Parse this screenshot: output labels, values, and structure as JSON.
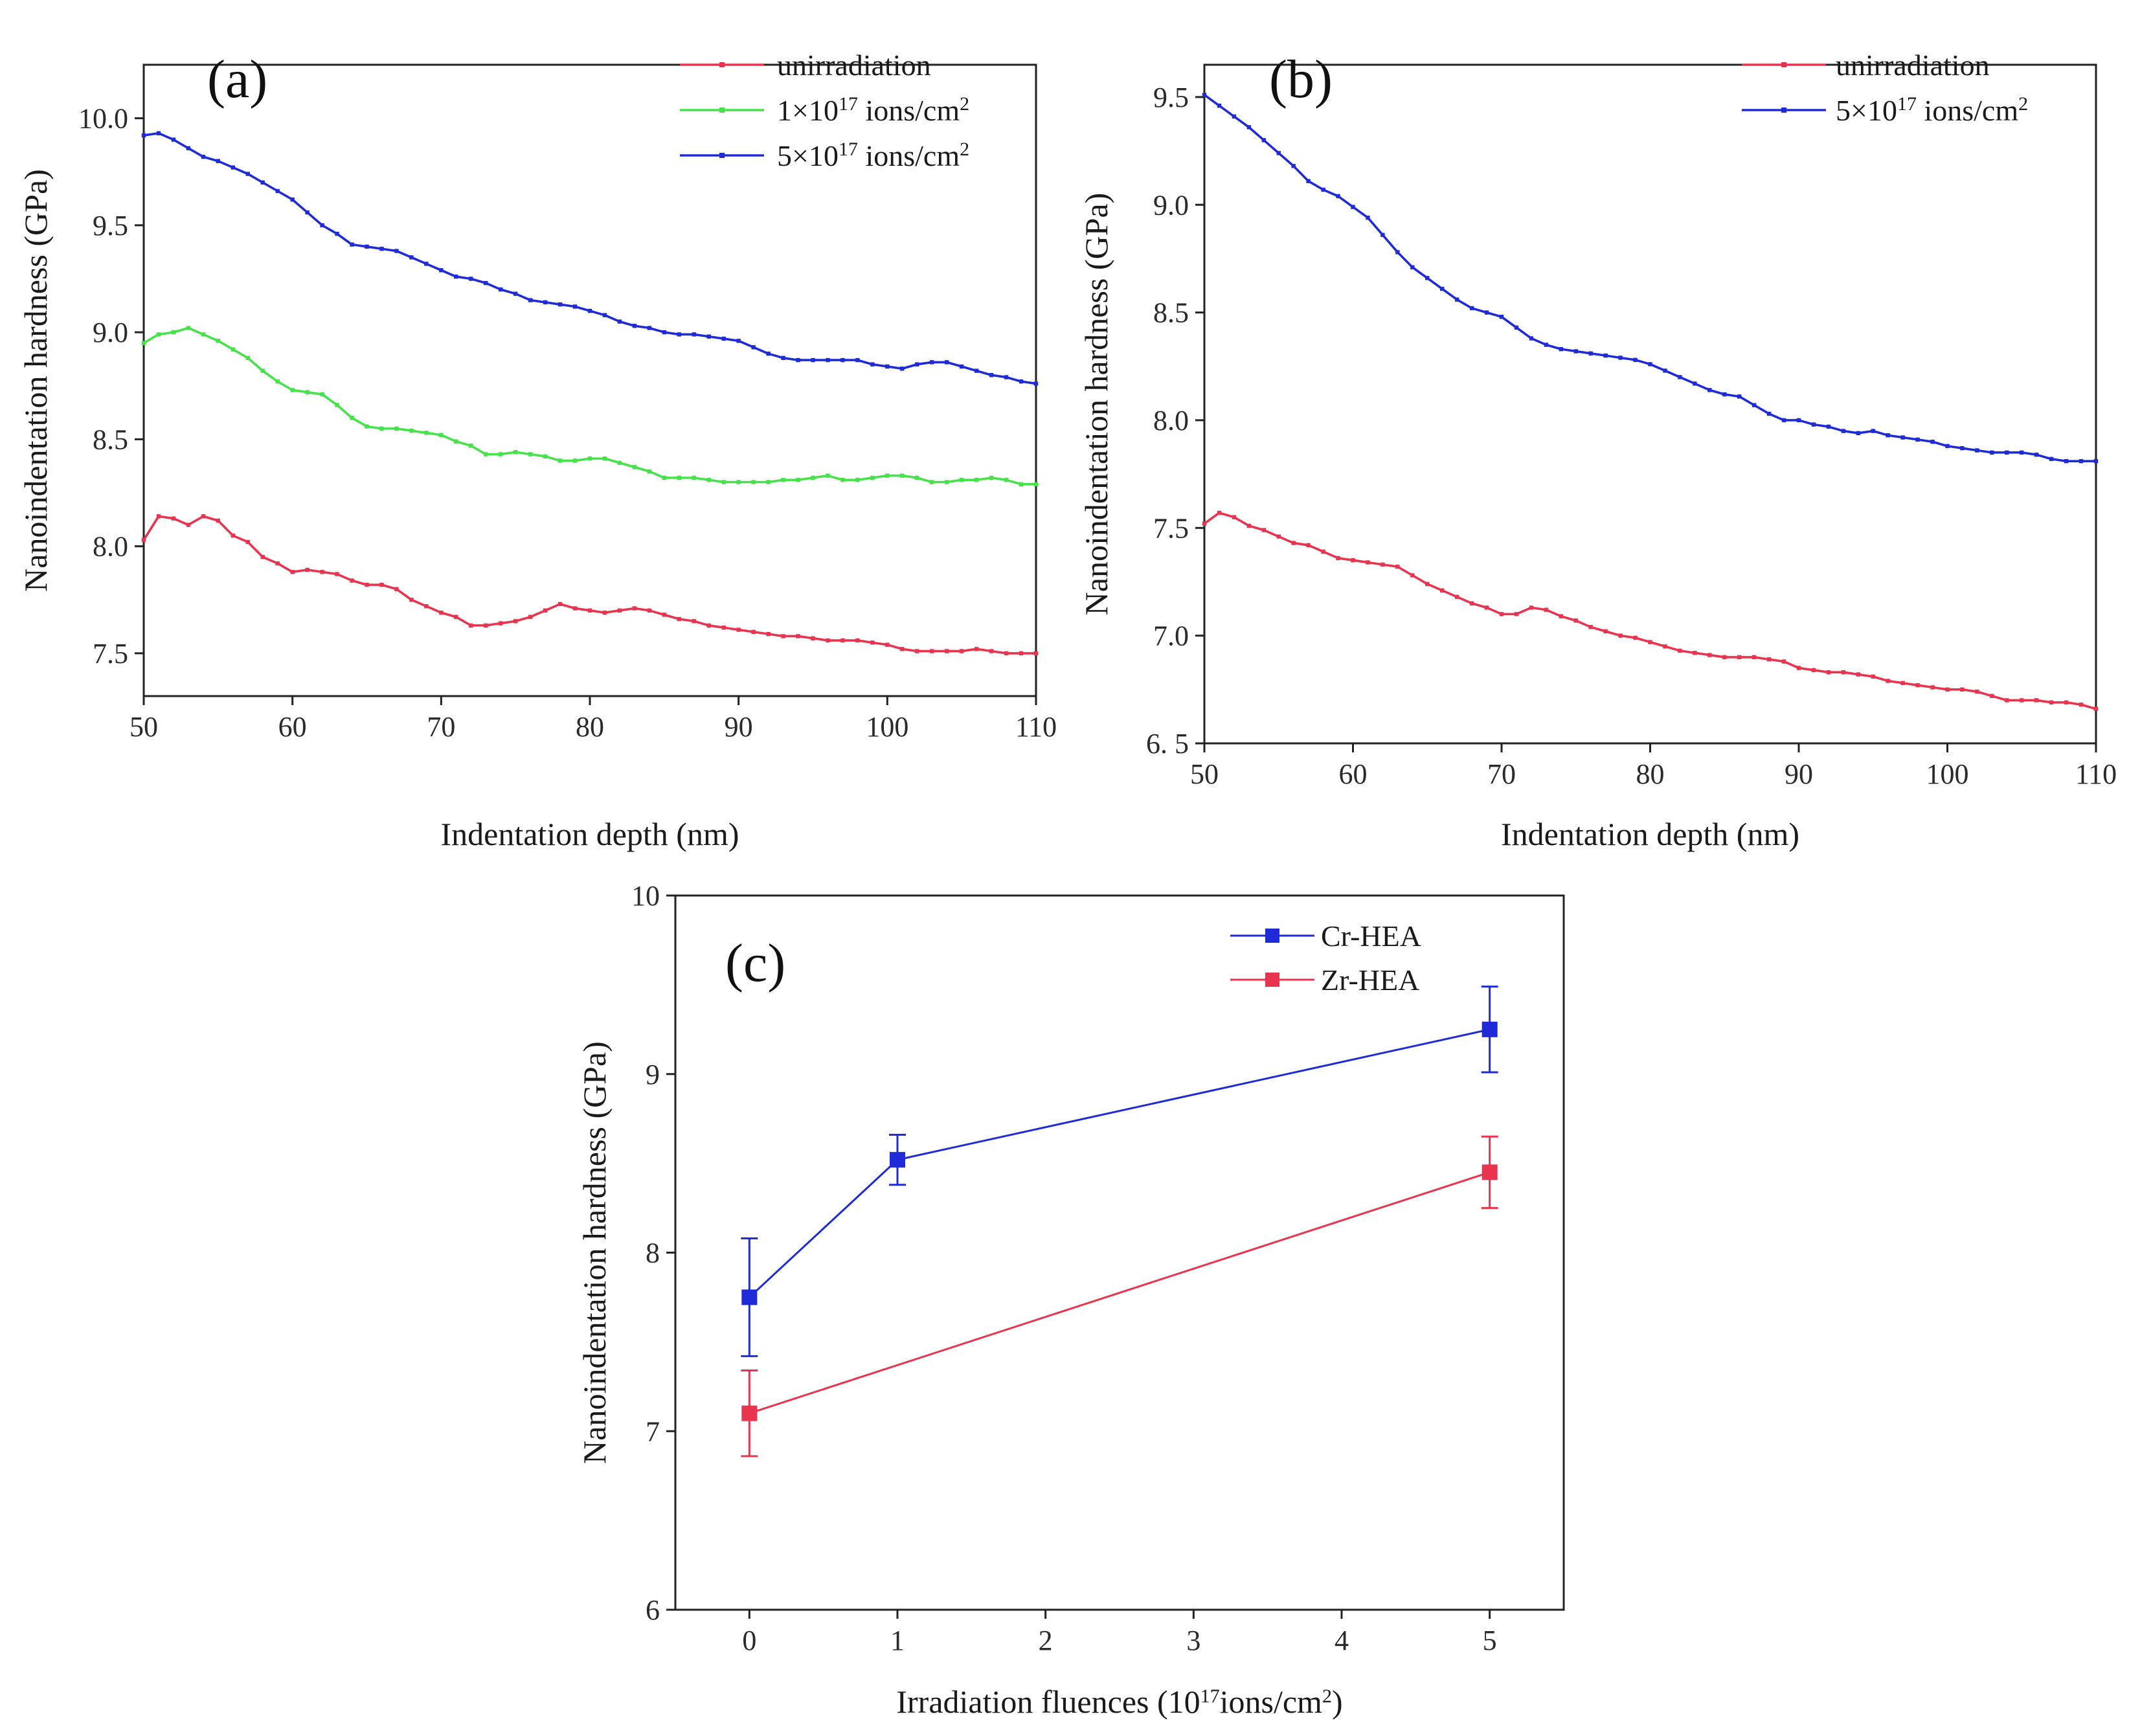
{
  "colors": {
    "red": "#e8344e",
    "green": "#45e24a",
    "blue": "#1e2bd6",
    "axis": "#222222"
  },
  "chart_data": [
    {
      "panel": "(a)",
      "type": "line",
      "xlabel": "Indentation depth (nm)",
      "ylabel": "Nanoindentation hardness (GPa)",
      "xlim": [
        50,
        110
      ],
      "ylim": [
        7.3,
        10.25
      ],
      "xticks": [
        "50",
        "60",
        "70",
        "80",
        "90",
        "100",
        "110"
      ],
      "yticks": [
        "7.5",
        "8.0",
        "8.5",
        "9.0",
        "9.5",
        "10.0"
      ],
      "legend_position": "top-right",
      "series": [
        {
          "name": "unirradiation",
          "color_key": "red",
          "x": [
            50,
            51,
            52,
            53,
            54,
            55,
            56,
            57,
            58,
            59,
            60,
            61,
            62,
            63,
            64,
            65,
            66,
            67,
            68,
            69,
            70,
            71,
            72,
            73,
            74,
            75,
            76,
            77,
            78,
            79,
            80,
            81,
            82,
            83,
            84,
            85,
            86,
            87,
            88,
            89,
            90,
            91,
            92,
            93,
            94,
            95,
            96,
            97,
            98,
            99,
            100,
            101,
            102,
            103,
            104,
            105,
            106,
            107,
            108,
            109,
            110
          ],
          "y": [
            8.03,
            8.14,
            8.13,
            8.1,
            8.14,
            8.12,
            8.05,
            8.02,
            7.95,
            7.92,
            7.88,
            7.89,
            7.88,
            7.87,
            7.84,
            7.82,
            7.82,
            7.8,
            7.75,
            7.72,
            7.69,
            7.67,
            7.63,
            7.63,
            7.64,
            7.65,
            7.67,
            7.7,
            7.73,
            7.71,
            7.7,
            7.69,
            7.7,
            7.71,
            7.7,
            7.68,
            7.66,
            7.65,
            7.63,
            7.62,
            7.61,
            7.6,
            7.59,
            7.58,
            7.58,
            7.57,
            7.56,
            7.56,
            7.56,
            7.55,
            7.54,
            7.52,
            7.51,
            7.51,
            7.51,
            7.51,
            7.52,
            7.51,
            7.5,
            7.5,
            7.5
          ]
        },
        {
          "name": "1×10¹⁷ ions/cm²",
          "color_key": "green",
          "x": [
            50,
            51,
            52,
            53,
            54,
            55,
            56,
            57,
            58,
            59,
            60,
            61,
            62,
            63,
            64,
            65,
            66,
            67,
            68,
            69,
            70,
            71,
            72,
            73,
            74,
            75,
            76,
            77,
            78,
            79,
            80,
            81,
            82,
            83,
            84,
            85,
            86,
            87,
            88,
            89,
            90,
            91,
            92,
            93,
            94,
            95,
            96,
            97,
            98,
            99,
            100,
            101,
            102,
            103,
            104,
            105,
            106,
            107,
            108,
            109,
            110
          ],
          "y": [
            8.95,
            8.99,
            9.0,
            9.02,
            8.99,
            8.96,
            8.92,
            8.88,
            8.82,
            8.77,
            8.73,
            8.72,
            8.71,
            8.66,
            8.6,
            8.56,
            8.55,
            8.55,
            8.54,
            8.53,
            8.52,
            8.49,
            8.47,
            8.43,
            8.43,
            8.44,
            8.43,
            8.42,
            8.4,
            8.4,
            8.41,
            8.41,
            8.39,
            8.37,
            8.35,
            8.32,
            8.32,
            8.32,
            8.31,
            8.3,
            8.3,
            8.3,
            8.3,
            8.31,
            8.31,
            8.32,
            8.33,
            8.31,
            8.31,
            8.32,
            8.33,
            8.33,
            8.32,
            8.3,
            8.3,
            8.31,
            8.31,
            8.32,
            8.31,
            8.29,
            8.29
          ]
        },
        {
          "name": "5×10¹⁷ ions/cm²",
          "color_key": "blue",
          "x": [
            50,
            51,
            52,
            53,
            54,
            55,
            56,
            57,
            58,
            59,
            60,
            61,
            62,
            63,
            64,
            65,
            66,
            67,
            68,
            69,
            70,
            71,
            72,
            73,
            74,
            75,
            76,
            77,
            78,
            79,
            80,
            81,
            82,
            83,
            84,
            85,
            86,
            87,
            88,
            89,
            90,
            91,
            92,
            93,
            94,
            95,
            96,
            97,
            98,
            99,
            100,
            101,
            102,
            103,
            104,
            105,
            106,
            107,
            108,
            109,
            110
          ],
          "y": [
            9.92,
            9.93,
            9.9,
            9.86,
            9.82,
            9.8,
            9.77,
            9.74,
            9.7,
            9.66,
            9.62,
            9.56,
            9.5,
            9.46,
            9.41,
            9.4,
            9.39,
            9.38,
            9.35,
            9.32,
            9.29,
            9.26,
            9.25,
            9.23,
            9.2,
            9.18,
            9.15,
            9.14,
            9.13,
            9.12,
            9.1,
            9.08,
            9.05,
            9.03,
            9.02,
            9.0,
            8.99,
            8.99,
            8.98,
            8.97,
            8.96,
            8.93,
            8.9,
            8.88,
            8.87,
            8.87,
            8.87,
            8.87,
            8.87,
            8.85,
            8.84,
            8.83,
            8.85,
            8.86,
            8.86,
            8.84,
            8.82,
            8.8,
            8.79,
            8.77,
            8.76
          ]
        }
      ]
    },
    {
      "panel": "(b)",
      "type": "line",
      "xlabel": "Indentation depth (nm)",
      "ylabel": "Nanoindentation hardness (GPa)",
      "xlim": [
        50,
        110
      ],
      "ylim": [
        6.5,
        9.65
      ],
      "xticks": [
        "50",
        "60",
        "70",
        "80",
        "90",
        "100",
        "110"
      ],
      "yticks": [
        "6. 5",
        "7.0",
        "7.5",
        "8.0",
        "8.5",
        "9.0",
        "9.5"
      ],
      "legend_position": "top-right",
      "series": [
        {
          "name": "unirradiation",
          "color_key": "red",
          "x": [
            50,
            51,
            52,
            53,
            54,
            55,
            56,
            57,
            58,
            59,
            60,
            61,
            62,
            63,
            64,
            65,
            66,
            67,
            68,
            69,
            70,
            71,
            72,
            73,
            74,
            75,
            76,
            77,
            78,
            79,
            80,
            81,
            82,
            83,
            84,
            85,
            86,
            87,
            88,
            89,
            90,
            91,
            92,
            93,
            94,
            95,
            96,
            97,
            98,
            99,
            100,
            101,
            102,
            103,
            104,
            105,
            106,
            107,
            108,
            109,
            110
          ],
          "y": [
            7.52,
            7.57,
            7.55,
            7.51,
            7.49,
            7.46,
            7.43,
            7.42,
            7.39,
            7.36,
            7.35,
            7.34,
            7.33,
            7.32,
            7.28,
            7.24,
            7.21,
            7.18,
            7.15,
            7.13,
            7.1,
            7.1,
            7.13,
            7.12,
            7.09,
            7.07,
            7.04,
            7.02,
            7.0,
            6.99,
            6.97,
            6.95,
            6.93,
            6.92,
            6.91,
            6.9,
            6.9,
            6.9,
            6.89,
            6.88,
            6.85,
            6.84,
            6.83,
            6.83,
            6.82,
            6.81,
            6.79,
            6.78,
            6.77,
            6.76,
            6.75,
            6.75,
            6.74,
            6.72,
            6.7,
            6.7,
            6.7,
            6.69,
            6.69,
            6.68,
            6.66
          ]
        },
        {
          "name": "5×10¹⁷ ions/cm²",
          "color_key": "blue",
          "x": [
            50,
            51,
            52,
            53,
            54,
            55,
            56,
            57,
            58,
            59,
            60,
            61,
            62,
            63,
            64,
            65,
            66,
            67,
            68,
            69,
            70,
            71,
            72,
            73,
            74,
            75,
            76,
            77,
            78,
            79,
            80,
            81,
            82,
            83,
            84,
            85,
            86,
            87,
            88,
            89,
            90,
            91,
            92,
            93,
            94,
            95,
            96,
            97,
            98,
            99,
            100,
            101,
            102,
            103,
            104,
            105,
            106,
            107,
            108,
            109,
            110
          ],
          "y": [
            9.51,
            9.46,
            9.41,
            9.36,
            9.3,
            9.24,
            9.18,
            9.11,
            9.07,
            9.04,
            8.99,
            8.94,
            8.86,
            8.78,
            8.71,
            8.66,
            8.61,
            8.56,
            8.52,
            8.5,
            8.48,
            8.43,
            8.38,
            8.35,
            8.33,
            8.32,
            8.31,
            8.3,
            8.29,
            8.28,
            8.26,
            8.23,
            8.2,
            8.17,
            8.14,
            8.12,
            8.11,
            8.07,
            8.03,
            8.0,
            8.0,
            7.98,
            7.97,
            7.95,
            7.94,
            7.95,
            7.93,
            7.92,
            7.91,
            7.9,
            7.88,
            7.87,
            7.86,
            7.85,
            7.85,
            7.85,
            7.84,
            7.82,
            7.81,
            7.81,
            7.81
          ]
        }
      ]
    },
    {
      "panel": "(c)",
      "type": "line",
      "xlabel": "Irradiation fluences (10¹⁷ions/cm²)",
      "ylabel": "Nanoindentation hardness (GPa)",
      "xlim": [
        -0.5,
        5.5
      ],
      "ylim": [
        6,
        10
      ],
      "xticks": [
        "0",
        "1",
        "2",
        "3",
        "4",
        "5"
      ],
      "yticks": [
        "6",
        "7",
        "8",
        "9",
        "10"
      ],
      "legend_position": "top-right",
      "series": [
        {
          "name": "Cr-HEA",
          "color_key": "blue",
          "x": [
            0,
            1,
            5
          ],
          "y": [
            7.75,
            8.52,
            9.25
          ],
          "err": [
            0.33,
            0.14,
            0.24
          ]
        },
        {
          "name": "Zr-HEA",
          "color_key": "red",
          "x": [
            0,
            5
          ],
          "y": [
            7.1,
            8.45
          ],
          "err": [
            0.24,
            0.2
          ]
        }
      ]
    }
  ]
}
